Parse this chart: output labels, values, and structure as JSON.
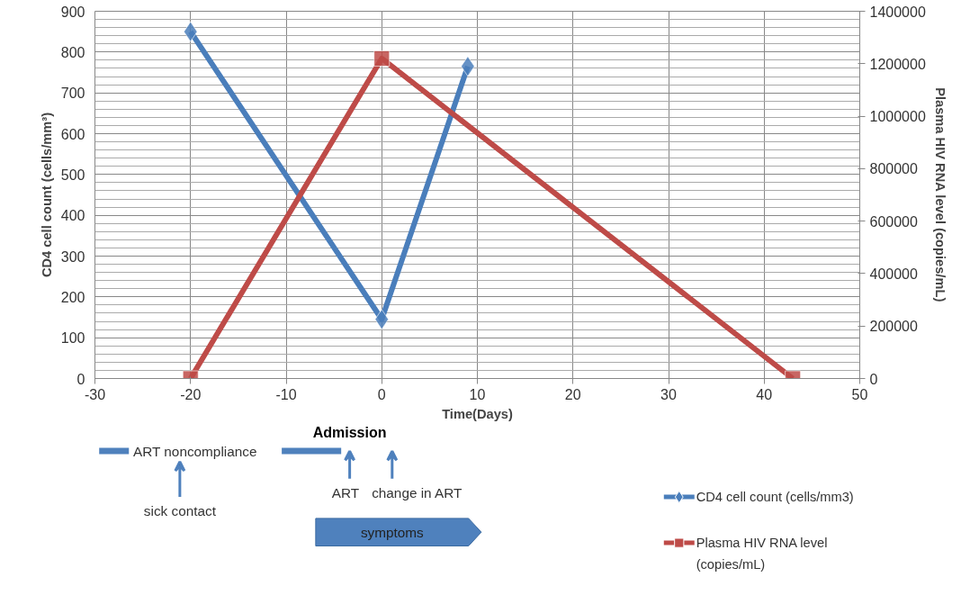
{
  "chart_data": {
    "type": "line",
    "series": [
      {
        "name": "CD4 cell count (cells/mm3)",
        "color": "#4a7ebb",
        "marker": "diamond",
        "x": [
          -20,
          0,
          9
        ],
        "values": [
          850,
          145,
          765
        ]
      },
      {
        "name": "Plasma HIV RNA level (copies/mL)",
        "color": "#be4b48",
        "marker": "square",
        "axis": "y2",
        "x": [
          -20,
          0,
          43
        ],
        "values": [
          0,
          1220000,
          0
        ]
      }
    ],
    "xlabel": "Time(Days)",
    "ylabel": "CD4 cell count (cells/mm³)",
    "y2label": "Plasma HIV RNA level (copies/mL)",
    "xlim": [
      -30,
      50
    ],
    "xticks": [
      -30,
      -20,
      -10,
      0,
      10,
      20,
      30,
      40,
      50
    ],
    "ylim": [
      0,
      900
    ],
    "yticks": [
      0,
      100,
      200,
      300,
      400,
      500,
      600,
      700,
      800,
      900
    ],
    "y2lim": [
      0,
      1400000
    ],
    "y2ticks": [
      0,
      200000,
      400000,
      600000,
      800000,
      1000000,
      1200000,
      1400000
    ],
    "grid": true,
    "legend": "bottom right",
    "line_style": "solid",
    "annotations": [
      "Admission",
      "ART noncompliance",
      "sick contact",
      "ART",
      "change in ART",
      "symptoms"
    ]
  }
}
